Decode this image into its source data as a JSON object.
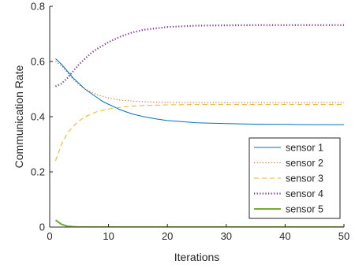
{
  "chart_data": {
    "type": "line",
    "xlabel": "Iterations",
    "ylabel": "Communication Rate",
    "xlim": [
      0,
      50
    ],
    "ylim": [
      0,
      0.8
    ],
    "xticks": [
      0,
      10,
      20,
      30,
      40,
      50
    ],
    "xtick_labels": [
      "0",
      "10",
      "20",
      "30",
      "40",
      "50"
    ],
    "yticks": [
      0,
      0.2,
      0.4,
      0.6,
      0.8
    ],
    "ytick_labels": [
      "0",
      "0.2",
      "0.4",
      "0.6",
      "0.8"
    ],
    "grid": false,
    "legend_position": "lower-right",
    "series": [
      {
        "name": "sensor 1",
        "color": "#0072BD",
        "style": "solid",
        "width": 1.0,
        "x": [
          1,
          2,
          3,
          4,
          5,
          6,
          7,
          8,
          9,
          10,
          12,
          14,
          16,
          18,
          20,
          25,
          30,
          35,
          40,
          45,
          50
        ],
        "y": [
          0.61,
          0.59,
          0.565,
          0.54,
          0.52,
          0.5,
          0.485,
          0.47,
          0.455,
          0.445,
          0.425,
          0.41,
          0.4,
          0.392,
          0.386,
          0.378,
          0.375,
          0.373,
          0.372,
          0.371,
          0.371
        ]
      },
      {
        "name": "sensor 2",
        "color": "#D95319",
        "style": "dotted",
        "width": 1.0,
        "x": [
          1,
          2,
          3,
          4,
          5,
          6,
          8,
          10,
          12,
          15,
          20,
          25,
          30,
          40,
          50
        ],
        "y": [
          0.6,
          0.585,
          0.56,
          0.535,
          0.515,
          0.5,
          0.48,
          0.468,
          0.46,
          0.455,
          0.452,
          0.451,
          0.451,
          0.451,
          0.451
        ]
      },
      {
        "name": "sensor 3",
        "color": "#EDB120",
        "style": "dashed",
        "width": 1.0,
        "x": [
          1,
          2,
          3,
          4,
          5,
          6,
          8,
          10,
          12,
          15,
          20,
          25,
          30,
          40,
          50
        ],
        "y": [
          0.24,
          0.3,
          0.34,
          0.365,
          0.385,
          0.4,
          0.418,
          0.428,
          0.434,
          0.44,
          0.443,
          0.444,
          0.444,
          0.444,
          0.444
        ]
      },
      {
        "name": "sensor 4",
        "color": "#7E2F8E",
        "style": "dotted",
        "width": 2.2,
        "x": [
          1,
          2,
          3,
          4,
          5,
          6,
          7,
          8,
          10,
          12,
          14,
          16,
          18,
          20,
          25,
          30,
          35,
          40,
          45,
          50
        ],
        "y": [
          0.51,
          0.52,
          0.54,
          0.565,
          0.59,
          0.61,
          0.63,
          0.645,
          0.67,
          0.69,
          0.705,
          0.715,
          0.72,
          0.725,
          0.73,
          0.731,
          0.732,
          0.732,
          0.732,
          0.732
        ]
      },
      {
        "name": "sensor 5",
        "color": "#77AC30",
        "style": "solid",
        "width": 2.0,
        "x": [
          1,
          2,
          3,
          4,
          5,
          10,
          20,
          30,
          40,
          50
        ],
        "y": [
          0.025,
          0.01,
          0.003,
          0.001,
          0,
          0,
          0,
          0,
          0,
          0
        ]
      }
    ]
  }
}
